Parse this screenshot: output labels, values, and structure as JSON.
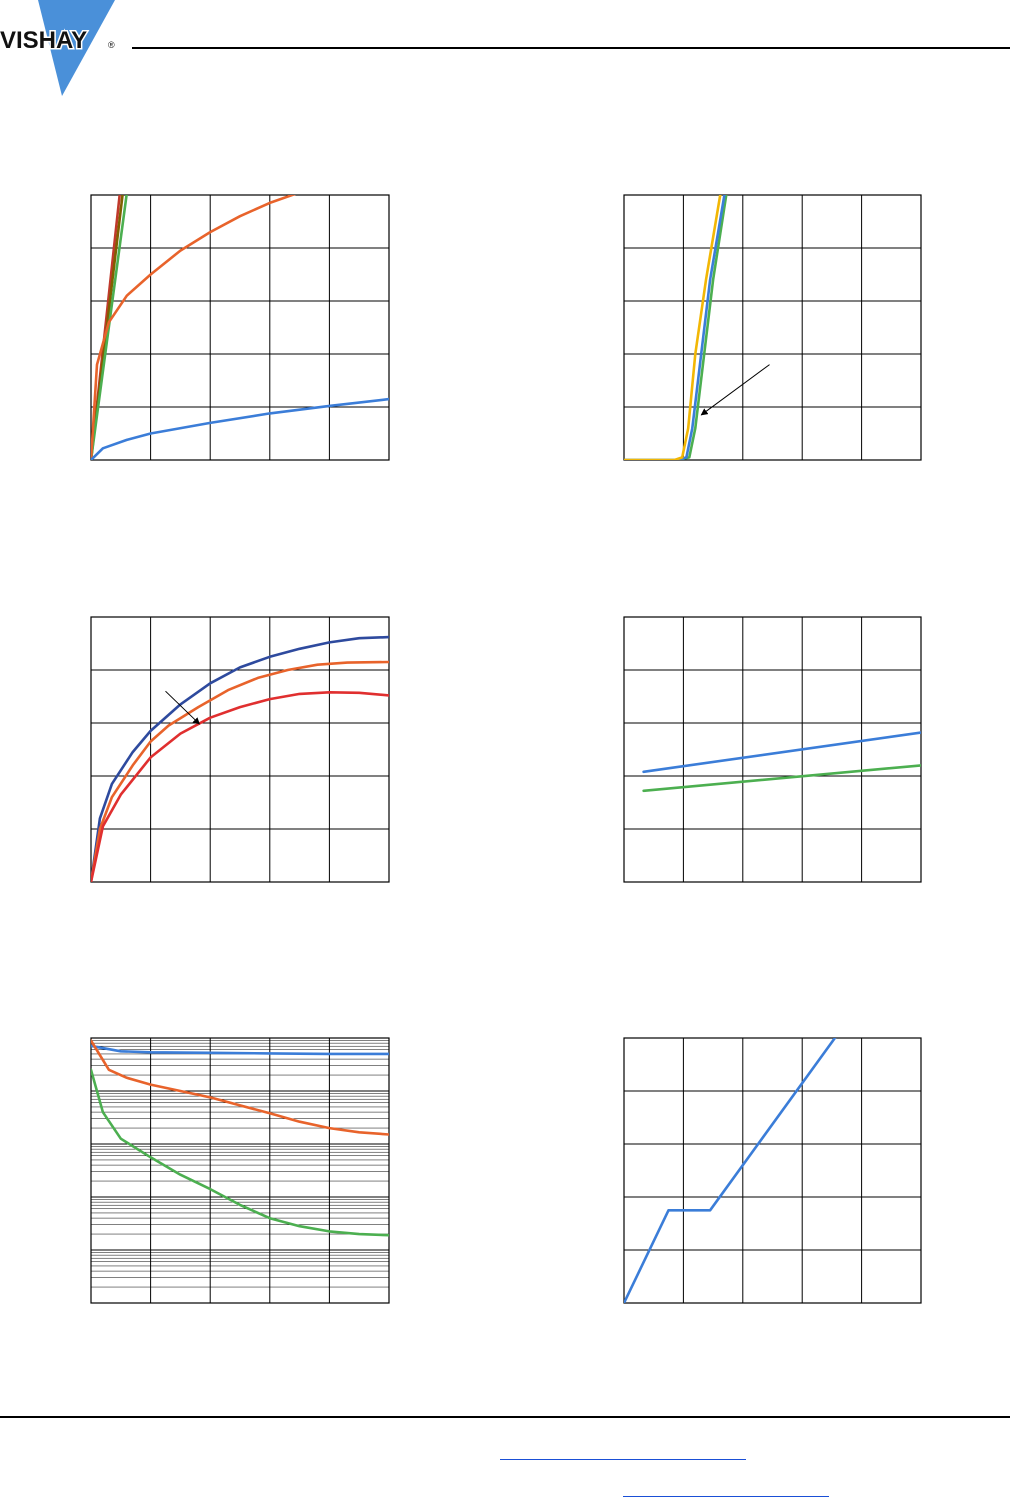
{
  "header": {
    "logo_text": "VISHAY",
    "logo_mark": "®",
    "brand_color": "#4a90d9"
  },
  "chart_data": [
    {
      "type": "line",
      "xlim": [
        0,
        5
      ],
      "ylim": [
        0,
        5
      ],
      "grid": true,
      "series": [
        {
          "color": "#c0392b",
          "x": [
            0,
            0.5
          ],
          "y": [
            0,
            5.2
          ]
        },
        {
          "color": "#7f6000",
          "x": [
            0,
            0.55
          ],
          "y": [
            0,
            5.2
          ]
        },
        {
          "color": "#4caf50",
          "x": [
            0,
            0.62
          ],
          "y": [
            0,
            5.2
          ]
        },
        {
          "color": "#e8632b",
          "x": [
            0,
            0.1,
            0.3,
            0.6,
            1,
            1.5,
            2,
            2.5,
            3,
            3.5,
            3.7
          ],
          "y": [
            0,
            1.8,
            2.6,
            3.1,
            3.5,
            3.95,
            4.3,
            4.6,
            4.85,
            5.05,
            5.1
          ]
        },
        {
          "color": "#3b7dd8",
          "x": [
            0,
            0.2,
            0.6,
            1,
            2,
            3,
            4,
            5
          ],
          "y": [
            0,
            0.22,
            0.38,
            0.5,
            0.7,
            0.88,
            1.02,
            1.15
          ]
        }
      ]
    },
    {
      "type": "line",
      "xlim": [
        0,
        5
      ],
      "ylim": [
        0,
        5
      ],
      "grid": true,
      "annotations": [
        {
          "arrow_from": [
            2.45,
            1.8
          ],
          "arrow_to": [
            1.3,
            0.85
          ]
        }
      ],
      "series": [
        {
          "color": "#4caf50",
          "x": [
            0,
            0.9,
            1.1,
            1.2,
            1.35,
            1.5,
            1.75
          ],
          "y": [
            0,
            0,
            0.05,
            0.6,
            2.0,
            3.4,
            5.2
          ]
        },
        {
          "color": "#3b7dd8",
          "x": [
            0,
            0.9,
            1.05,
            1.15,
            1.3,
            1.45,
            1.72
          ],
          "y": [
            0,
            0,
            0.05,
            0.6,
            2.0,
            3.4,
            5.2
          ]
        },
        {
          "color": "#f2b705",
          "x": [
            0,
            0.85,
            0.98,
            1.08,
            1.2,
            1.38,
            1.65
          ],
          "y": [
            0,
            0,
            0.05,
            0.6,
            2.0,
            3.4,
            5.2
          ]
        }
      ]
    },
    {
      "type": "line",
      "xlim": [
        0,
        5
      ],
      "ylim": [
        0,
        5
      ],
      "grid": true,
      "annotations": [
        {
          "arrow_from": [
            1.25,
            3.6
          ],
          "arrow_to": [
            1.82,
            2.98
          ]
        }
      ],
      "series": [
        {
          "color": "#2e4a9e",
          "x": [
            0,
            0.15,
            0.35,
            0.7,
            1,
            1.5,
            2,
            2.5,
            3,
            3.5,
            4,
            4.5,
            5
          ],
          "y": [
            0,
            1.2,
            1.85,
            2.45,
            2.85,
            3.35,
            3.75,
            4.05,
            4.25,
            4.4,
            4.52,
            4.6,
            4.62
          ]
        },
        {
          "color": "#e8632b",
          "x": [
            0,
            0.15,
            0.35,
            0.7,
            1,
            1.3,
            1.8,
            2.3,
            2.8,
            3.3,
            3.8,
            4.3,
            5
          ],
          "y": [
            0,
            1.0,
            1.6,
            2.2,
            2.65,
            2.95,
            3.3,
            3.62,
            3.85,
            4.0,
            4.1,
            4.14,
            4.15
          ]
        },
        {
          "color": "#e02f2f",
          "x": [
            0,
            0.2,
            0.5,
            1,
            1.5,
            2,
            2.5,
            3,
            3.5,
            4,
            4.5,
            5
          ],
          "y": [
            0,
            1.05,
            1.65,
            2.35,
            2.8,
            3.1,
            3.3,
            3.45,
            3.55,
            3.58,
            3.57,
            3.52
          ]
        }
      ]
    },
    {
      "type": "line",
      "xlim": [
        0,
        5
      ],
      "ylim": [
        0,
        5
      ],
      "grid": true,
      "series": [
        {
          "color": "#3b7dd8",
          "x": [
            0.33,
            5
          ],
          "y": [
            2.08,
            2.82
          ]
        },
        {
          "color": "#4caf50",
          "x": [
            0.33,
            5
          ],
          "y": [
            1.72,
            2.2
          ]
        }
      ]
    },
    {
      "type": "line",
      "xlim": [
        0,
        5
      ],
      "ylim": [
        0,
        5
      ],
      "yscale": "log",
      "grid": true,
      "series": [
        {
          "color": "#3b7dd8",
          "x": [
            0,
            0.5,
            1,
            2,
            3,
            4,
            5
          ],
          "y": [
            4.85,
            4.75,
            4.73,
            4.72,
            4.71,
            4.7,
            4.7
          ]
        },
        {
          "color": "#e8632b",
          "x": [
            0,
            0.3,
            0.6,
            1,
            2,
            3,
            3.5,
            4,
            4.5,
            5
          ],
          "y": [
            4.95,
            4.4,
            4.25,
            4.12,
            3.88,
            3.58,
            3.42,
            3.3,
            3.22,
            3.18
          ]
        },
        {
          "color": "#4caf50",
          "x": [
            0,
            0.2,
            0.5,
            1,
            1.5,
            2,
            2.5,
            3,
            3.5,
            4,
            4.5,
            5
          ],
          "y": [
            4.4,
            3.6,
            3.1,
            2.75,
            2.42,
            2.15,
            1.85,
            1.6,
            1.45,
            1.35,
            1.3,
            1.28
          ]
        }
      ]
    },
    {
      "type": "line",
      "xlim": [
        0,
        5
      ],
      "ylim": [
        0,
        5
      ],
      "grid": true,
      "series": [
        {
          "color": "#3b7dd8",
          "x": [
            0,
            0.75,
            1.45,
            3.55
          ],
          "y": [
            0,
            1.75,
            1.75,
            5.0
          ]
        }
      ]
    }
  ]
}
